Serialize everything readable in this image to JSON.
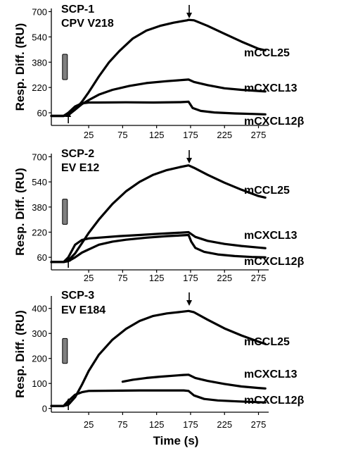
{
  "chart_data": [
    {
      "type": "line",
      "label_lines": [
        "SCP-1",
        "CPV V218"
      ],
      "xlabel": "",
      "ylabel": "Resp. Diff. (RU)",
      "xlim": [
        -30,
        290
      ],
      "ylim": [
        -20,
        720
      ],
      "x_ticks": [
        25,
        75,
        125,
        175,
        225,
        275
      ],
      "y_ticks": [
        60,
        220,
        380,
        540,
        700
      ],
      "arrow_up_x": -5,
      "arrow_down_x": 173,
      "injection_bar": {
        "x": -10,
        "y_range": [
          270,
          430
        ]
      },
      "series": [
        {
          "name": "mCCL25",
          "points": [
            [
              -30,
              40
            ],
            [
              -12,
              40
            ],
            [
              -5,
              45
            ],
            [
              5,
              80
            ],
            [
              15,
              130
            ],
            [
              25,
              190
            ],
            [
              40,
              290
            ],
            [
              55,
              380
            ],
            [
              70,
              450
            ],
            [
              90,
              530
            ],
            [
              110,
              580
            ],
            [
              130,
              610
            ],
            [
              150,
              630
            ],
            [
              170,
              645
            ],
            [
              172,
              648
            ],
            [
              180,
              645
            ],
            [
              200,
              610
            ],
            [
              225,
              560
            ],
            [
              250,
              510
            ],
            [
              275,
              465
            ],
            [
              285,
              455
            ]
          ]
        },
        {
          "name": "mCXCL13",
          "points": [
            [
              -30,
              40
            ],
            [
              -12,
              40
            ],
            [
              -5,
              48
            ],
            [
              5,
              80
            ],
            [
              15,
              115
            ],
            [
              25,
              140
            ],
            [
              40,
              175
            ],
            [
              60,
              205
            ],
            [
              85,
              230
            ],
            [
              110,
              248
            ],
            [
              140,
              260
            ],
            [
              165,
              268
            ],
            [
              172,
              270
            ],
            [
              180,
              255
            ],
            [
              200,
              235
            ],
            [
              225,
              215
            ],
            [
              250,
              205
            ],
            [
              275,
              198
            ],
            [
              285,
              195
            ]
          ]
        },
        {
          "name": "mCXCL12β",
          "points": [
            [
              -30,
              40
            ],
            [
              -12,
              40
            ],
            [
              -5,
              60
            ],
            [
              5,
              100
            ],
            [
              15,
              120
            ],
            [
              25,
              125
            ],
            [
              40,
              125
            ],
            [
              80,
              126
            ],
            [
              120,
              125
            ],
            [
              160,
              127
            ],
            [
              172,
              130
            ],
            [
              178,
              90
            ],
            [
              190,
              72
            ],
            [
              210,
              62
            ],
            [
              240,
              56
            ],
            [
              270,
              52
            ],
            [
              285,
              50
            ]
          ]
        }
      ]
    },
    {
      "type": "line",
      "label_lines": [
        "SCP-2",
        "EV E12"
      ],
      "xlabel": "",
      "ylabel": "Resp. Diff. (RU)",
      "xlim": [
        -30,
        290
      ],
      "ylim": [
        -20,
        720
      ],
      "x_ticks": [
        25,
        75,
        125,
        175,
        225,
        275
      ],
      "y_ticks": [
        60,
        220,
        380,
        540,
        700
      ],
      "arrow_up_x": -5,
      "arrow_down_x": 173,
      "injection_bar": {
        "x": -10,
        "y_range": [
          270,
          430
        ]
      },
      "series": [
        {
          "name": "mCCL25",
          "points": [
            [
              -30,
              30
            ],
            [
              -12,
              30
            ],
            [
              -5,
              40
            ],
            [
              5,
              85
            ],
            [
              15,
              150
            ],
            [
              25,
              215
            ],
            [
              40,
              300
            ],
            [
              60,
              400
            ],
            [
              80,
              480
            ],
            [
              100,
              540
            ],
            [
              120,
              585
            ],
            [
              140,
              615
            ],
            [
              160,
              635
            ],
            [
              172,
              645
            ],
            [
              180,
              630
            ],
            [
              200,
              585
            ],
            [
              225,
              535
            ],
            [
              250,
              490
            ],
            [
              275,
              450
            ],
            [
              285,
              440
            ]
          ]
        },
        {
          "name": "mCXCL13",
          "points": [
            [
              -30,
              30
            ],
            [
              -12,
              30
            ],
            [
              -5,
              60
            ],
            [
              5,
              140
            ],
            [
              15,
              170
            ],
            [
              25,
              180
            ],
            [
              40,
              185
            ],
            [
              70,
              195
            ],
            [
              100,
              202
            ],
            [
              130,
              210
            ],
            [
              160,
              217
            ],
            [
              172,
              220
            ],
            [
              182,
              190
            ],
            [
              200,
              165
            ],
            [
              225,
              145
            ],
            [
              250,
              132
            ],
            [
              275,
              122
            ],
            [
              285,
              118
            ]
          ]
        },
        {
          "name": "mCXCL12β",
          "points": [
            [
              -30,
              30
            ],
            [
              -12,
              30
            ],
            [
              -5,
              35
            ],
            [
              5,
              60
            ],
            [
              15,
              90
            ],
            [
              25,
              110
            ],
            [
              40,
              140
            ],
            [
              60,
              160
            ],
            [
              80,
              172
            ],
            [
              110,
              185
            ],
            [
              140,
              195
            ],
            [
              165,
              200
            ],
            [
              172,
              202
            ],
            [
              176,
              160
            ],
            [
              182,
              120
            ],
            [
              195,
              95
            ],
            [
              215,
              78
            ],
            [
              240,
              68
            ],
            [
              265,
              62
            ],
            [
              285,
              60
            ]
          ]
        }
      ]
    },
    {
      "type": "line",
      "label_lines": [
        "SCP-3",
        "EV E184"
      ],
      "xlabel": "Time (s)",
      "ylabel": "Resp. Diff. (RU)",
      "xlim": [
        -30,
        290
      ],
      "ylim": [
        -15,
        450
      ],
      "x_ticks": [
        25,
        75,
        125,
        175,
        225,
        275
      ],
      "y_ticks": [
        0,
        100,
        200,
        300,
        400
      ],
      "arrow_up_x": -5,
      "arrow_down_x": 173,
      "injection_bar": {
        "x": -10,
        "y_range": [
          180,
          280
        ]
      },
      "series": [
        {
          "name": "mCCL25",
          "points": [
            [
              -30,
              10
            ],
            [
              -12,
              10
            ],
            [
              -5,
              15
            ],
            [
              5,
              45
            ],
            [
              15,
              95
            ],
            [
              25,
              150
            ],
            [
              40,
              215
            ],
            [
              60,
              275
            ],
            [
              80,
              318
            ],
            [
              100,
              350
            ],
            [
              120,
              370
            ],
            [
              140,
              380
            ],
            [
              160,
              386
            ],
            [
              172,
              390
            ],
            [
              180,
              385
            ],
            [
              200,
              355
            ],
            [
              225,
              320
            ],
            [
              250,
              292
            ],
            [
              275,
              267
            ],
            [
              285,
              258
            ]
          ]
        },
        {
          "name": "mCXCL13",
          "points": [
            [
              75,
              107
            ],
            [
              90,
              115
            ],
            [
              110,
              122
            ],
            [
              130,
              127
            ],
            [
              150,
              131
            ],
            [
              165,
              134
            ],
            [
              172,
              135
            ],
            [
              182,
              122
            ],
            [
              200,
              110
            ],
            [
              225,
              98
            ],
            [
              250,
              88
            ],
            [
              275,
              82
            ],
            [
              285,
              80
            ]
          ]
        },
        {
          "name": "mCXCL12β",
          "points": [
            [
              -30,
              10
            ],
            [
              -12,
              10
            ],
            [
              -5,
              30
            ],
            [
              5,
              55
            ],
            [
              15,
              65
            ],
            [
              25,
              70
            ],
            [
              60,
              71
            ],
            [
              100,
              72
            ],
            [
              140,
              72
            ],
            [
              165,
              72
            ],
            [
              172,
              70
            ],
            [
              180,
              52
            ],
            [
              195,
              38
            ],
            [
              215,
              32
            ],
            [
              245,
              28
            ],
            [
              285,
              24
            ]
          ]
        }
      ]
    }
  ]
}
